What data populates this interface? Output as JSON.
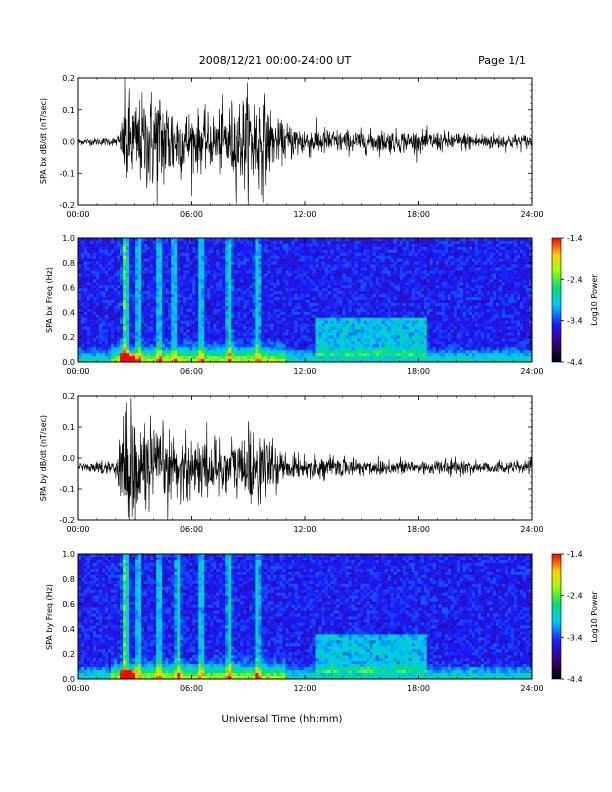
{
  "header": {
    "date_range": "2008/12/21  00:00-24:00 UT",
    "page": "Page 1/1"
  },
  "footer": {
    "xlabel": "Universal Time (hh:mm)"
  },
  "chart_data": [
    {
      "type": "line",
      "title": "",
      "ylabel": "SPA bx dB/dt (nT/sec)",
      "xlabel": "",
      "x_ticks": [
        "00:00",
        "06:00",
        "12:00",
        "18:00",
        "24:00"
      ],
      "y_ticks": [
        "0.2",
        "0.1",
        "0.0",
        "-0.1",
        "-0.2"
      ],
      "xlim_hours": [
        0,
        24
      ],
      "ylim": [
        -0.2,
        0.2
      ],
      "grid": false,
      "line_color": "#000000",
      "activity_envelope": [
        {
          "hour": 0.0,
          "amp": 0.012
        },
        {
          "hour": 2.0,
          "amp": 0.015
        },
        {
          "hour": 2.3,
          "amp": 0.05
        },
        {
          "hour": 2.5,
          "amp": 0.2
        },
        {
          "hour": 3.0,
          "amp": 0.14
        },
        {
          "hour": 4.2,
          "amp": 0.2
        },
        {
          "hour": 5.5,
          "amp": 0.12
        },
        {
          "hour": 7.0,
          "amp": 0.09
        },
        {
          "hour": 9.5,
          "amp": 0.2
        },
        {
          "hour": 10.5,
          "amp": 0.07
        },
        {
          "hour": 14.0,
          "amp": 0.04
        },
        {
          "hour": 16.5,
          "amp": 0.04
        },
        {
          "hour": 24.0,
          "amp": 0.025
        }
      ]
    },
    {
      "type": "heatmap",
      "title": "",
      "ylabel": "SPA bx Freq (Hz)",
      "xlabel": "",
      "x_ticks": [
        "00:00",
        "06:00",
        "12:00",
        "18:00",
        "24:00"
      ],
      "y_ticks": [
        "1.0",
        "0.8",
        "0.6",
        "0.4",
        "0.2",
        "0.0"
      ],
      "xlim_hours": [
        0,
        24
      ],
      "ylim": [
        0,
        1.0
      ],
      "colorbar_label": "Log10 Power",
      "colorbar_ticks": [
        "-1.4",
        "-2.4",
        "-3.4",
        "-4.4"
      ],
      "colorbar_range": [
        -4.4,
        -1.4
      ],
      "active_bands_hours": [
        2.5,
        3.2,
        4.3,
        5.1,
        6.5,
        8.0,
        9.5
      ],
      "pc_activity_hours": [
        12.5,
        18.5
      ],
      "pc_activity_freq_hz": [
        0.05,
        0.35
      ]
    },
    {
      "type": "line",
      "title": "",
      "ylabel": "SPA by dB/dt (nT/sec)",
      "xlabel": "",
      "x_ticks": [
        "00:00",
        "06:00",
        "12:00",
        "18:00",
        "24:00"
      ],
      "y_ticks": [
        "0.2",
        "0.1",
        "0.0",
        "-0.1",
        "-0.2"
      ],
      "xlim_hours": [
        0,
        24
      ],
      "ylim": [
        -0.2,
        0.2
      ],
      "grid": false,
      "line_color": "#000000",
      "baseline": -0.03,
      "activity_envelope": [
        {
          "hour": 0.0,
          "amp": 0.01
        },
        {
          "hour": 2.0,
          "amp": 0.03
        },
        {
          "hour": 2.5,
          "amp": 0.23
        },
        {
          "hour": 3.2,
          "amp": 0.2
        },
        {
          "hour": 4.0,
          "amp": 0.14
        },
        {
          "hour": 5.5,
          "amp": 0.12
        },
        {
          "hour": 7.0,
          "amp": 0.1
        },
        {
          "hour": 9.5,
          "amp": 0.14
        },
        {
          "hour": 11.0,
          "amp": 0.04
        },
        {
          "hour": 24.0,
          "amp": 0.02
        }
      ]
    },
    {
      "type": "heatmap",
      "title": "",
      "ylabel": "SPA by Freq (Hz)",
      "xlabel": "",
      "x_ticks": [
        "00:00",
        "06:00",
        "12:00",
        "18:00",
        "24:00"
      ],
      "y_ticks": [
        "1.0",
        "0.8",
        "0.6",
        "0.4",
        "0.2",
        "0.0"
      ],
      "xlim_hours": [
        0,
        24
      ],
      "ylim": [
        0,
        1.0
      ],
      "colorbar_label": "Log10 Power",
      "colorbar_ticks": [
        "-1.4",
        "-2.4",
        "-3.4",
        "-4.4"
      ],
      "colorbar_range": [
        -4.4,
        -1.4
      ],
      "active_bands_hours": [
        2.5,
        3.2,
        4.3,
        5.3,
        6.5,
        8.0,
        9.5
      ],
      "pc_activity_hours": [
        12.5,
        18.5
      ],
      "pc_activity_freq_hz": [
        0.05,
        0.35
      ]
    }
  ]
}
